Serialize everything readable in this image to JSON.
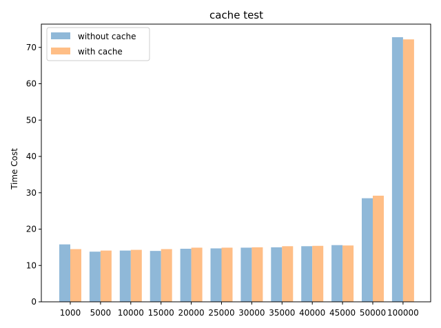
{
  "chart_data": {
    "type": "bar",
    "title": "cache test",
    "xlabel": "",
    "ylabel": "Time Cost",
    "categories": [
      "1000",
      "5000",
      "10000",
      "15000",
      "20000",
      "25000",
      "30000",
      "35000",
      "40000",
      "45000",
      "50000",
      "100000"
    ],
    "series": [
      {
        "name": "without cache",
        "color": "#8fb8d8",
        "values": [
          15.8,
          13.8,
          14.1,
          14.0,
          14.6,
          14.7,
          14.9,
          15.0,
          15.3,
          15.6,
          28.5,
          72.8
        ]
      },
      {
        "name": "with cache",
        "color": "#ffbe86",
        "values": [
          14.5,
          14.1,
          14.3,
          14.5,
          14.9,
          14.9,
          15.0,
          15.3,
          15.4,
          15.5,
          29.2,
          72.2
        ]
      }
    ],
    "ylim": [
      0,
      76.4
    ],
    "yticks": [
      0,
      10,
      20,
      30,
      40,
      50,
      60,
      70
    ],
    "grid": false,
    "legend_position": "top-left"
  }
}
